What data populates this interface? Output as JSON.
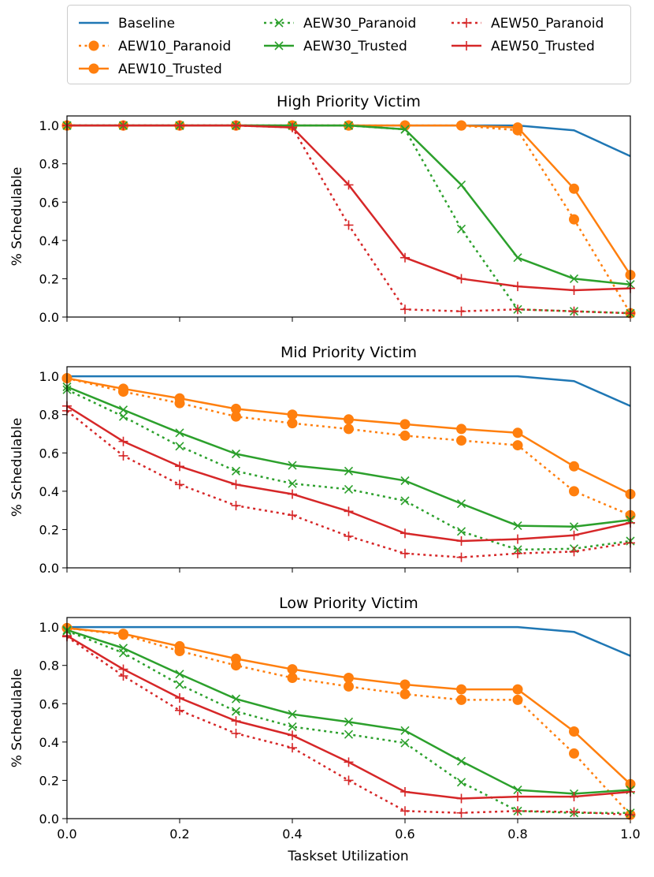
{
  "chart_data": {
    "type": "line",
    "xlabel": "Taskset Utilization",
    "x": [
      0.0,
      0.1,
      0.2,
      0.3,
      0.4,
      0.5,
      0.6,
      0.7,
      0.8,
      0.9,
      1.0
    ],
    "xlim": [
      0.0,
      1.0
    ],
    "xticks": [
      "0.0",
      "0.2",
      "0.4",
      "0.6",
      "0.8",
      "1.0"
    ],
    "legend": {
      "placement": "top",
      "entries": [
        "Baseline",
        "AEW10_Paranoid",
        "AEW10_Trusted",
        "AEW30_Paranoid",
        "AEW30_Trusted",
        "AEW50_Paranoid",
        "AEW50_Trusted"
      ]
    },
    "series_styles": [
      {
        "name": "Baseline",
        "color": "#1f77b4",
        "dash": "solid",
        "marker": "none"
      },
      {
        "name": "AEW10_Paranoid",
        "color": "#ff7f0e",
        "dash": "dotted",
        "marker": "circle"
      },
      {
        "name": "AEW10_Trusted",
        "color": "#ff7f0e",
        "dash": "solid",
        "marker": "circle"
      },
      {
        "name": "AEW30_Paranoid",
        "color": "#2ca02c",
        "dash": "dotted",
        "marker": "x"
      },
      {
        "name": "AEW30_Trusted",
        "color": "#2ca02c",
        "dash": "solid",
        "marker": "x"
      },
      {
        "name": "AEW50_Paranoid",
        "color": "#d62728",
        "dash": "dotted",
        "marker": "plus"
      },
      {
        "name": "AEW50_Trusted",
        "color": "#d62728",
        "dash": "solid",
        "marker": "plus"
      }
    ],
    "panels": [
      {
        "title": "High Priority Victim",
        "ylabel": "% Schedulable",
        "ylim": [
          0.0,
          1.05
        ],
        "yticks": [
          "0.0",
          "0.2",
          "0.4",
          "0.6",
          "0.8",
          "1.0"
        ],
        "series": [
          {
            "name": "Baseline",
            "values": [
              1.0,
              1.0,
              1.0,
              1.0,
              1.0,
              1.0,
              1.0,
              1.0,
              1.0,
              0.975,
              0.84
            ]
          },
          {
            "name": "AEW10_Paranoid",
            "values": [
              1.0,
              1.0,
              1.0,
              1.0,
              1.0,
              1.0,
              1.0,
              1.0,
              0.975,
              0.51,
              0.02
            ]
          },
          {
            "name": "AEW10_Trusted",
            "values": [
              1.0,
              1.0,
              1.0,
              1.0,
              1.0,
              1.0,
              1.0,
              1.0,
              0.99,
              0.67,
              0.22
            ]
          },
          {
            "name": "AEW30_Paranoid",
            "values": [
              1.0,
              1.0,
              1.0,
              1.0,
              1.0,
              1.0,
              0.98,
              0.46,
              0.04,
              0.03,
              0.02
            ]
          },
          {
            "name": "AEW30_Trusted",
            "values": [
              1.0,
              1.0,
              1.0,
              1.0,
              1.0,
              1.0,
              0.98,
              0.69,
              0.31,
              0.2,
              0.17
            ]
          },
          {
            "name": "AEW50_Paranoid",
            "values": [
              1.0,
              1.0,
              1.0,
              1.0,
              0.99,
              0.48,
              0.04,
              0.03,
              0.04,
              0.03,
              0.02
            ]
          },
          {
            "name": "AEW50_Trusted",
            "values": [
              1.0,
              1.0,
              1.0,
              1.0,
              0.99,
              0.69,
              0.31,
              0.2,
              0.16,
              0.14,
              0.15
            ]
          }
        ]
      },
      {
        "title": "Mid Priority Victim",
        "ylabel": "% Schedulable",
        "ylim": [
          0.0,
          1.05
        ],
        "yticks": [
          "0.0",
          "0.2",
          "0.4",
          "0.6",
          "0.8",
          "1.0"
        ],
        "series": [
          {
            "name": "Baseline",
            "values": [
              1.0,
              1.0,
              1.0,
              1.0,
              1.0,
              1.0,
              1.0,
              1.0,
              1.0,
              0.975,
              0.845
            ]
          },
          {
            "name": "AEW10_Paranoid",
            "values": [
              0.99,
              0.92,
              0.86,
              0.79,
              0.755,
              0.725,
              0.69,
              0.665,
              0.64,
              0.4,
              0.275
            ]
          },
          {
            "name": "AEW10_Trusted",
            "values": [
              0.99,
              0.935,
              0.885,
              0.83,
              0.8,
              0.775,
              0.75,
              0.725,
              0.705,
              0.53,
              0.385
            ]
          },
          {
            "name": "AEW30_Paranoid",
            "values": [
              0.93,
              0.79,
              0.635,
              0.505,
              0.44,
              0.41,
              0.35,
              0.19,
              0.095,
              0.1,
              0.14
            ]
          },
          {
            "name": "AEW30_Trusted",
            "values": [
              0.945,
              0.825,
              0.705,
              0.595,
              0.535,
              0.505,
              0.455,
              0.335,
              0.22,
              0.215,
              0.25
            ]
          },
          {
            "name": "AEW50_Paranoid",
            "values": [
              0.82,
              0.585,
              0.435,
              0.325,
              0.275,
              0.165,
              0.075,
              0.055,
              0.075,
              0.085,
              0.13
            ]
          },
          {
            "name": "AEW50_Trusted",
            "values": [
              0.845,
              0.66,
              0.53,
              0.435,
              0.385,
              0.295,
              0.18,
              0.14,
              0.15,
              0.17,
              0.235
            ]
          }
        ]
      },
      {
        "title": "Low Priority Victim",
        "ylabel": "% Schedulable",
        "ylim": [
          0.0,
          1.05
        ],
        "yticks": [
          "0.0",
          "0.2",
          "0.4",
          "0.6",
          "0.8",
          "1.0"
        ],
        "series": [
          {
            "name": "Baseline",
            "values": [
              1.0,
              1.0,
              1.0,
              1.0,
              1.0,
              1.0,
              1.0,
              1.0,
              1.0,
              0.975,
              0.85
            ]
          },
          {
            "name": "AEW10_Paranoid",
            "values": [
              0.995,
              0.96,
              0.875,
              0.8,
              0.735,
              0.69,
              0.65,
              0.62,
              0.62,
              0.34,
              0.02
            ]
          },
          {
            "name": "AEW10_Trusted",
            "values": [
              0.995,
              0.965,
              0.9,
              0.835,
              0.78,
              0.735,
              0.7,
              0.675,
              0.675,
              0.455,
              0.18
            ]
          },
          {
            "name": "AEW30_Paranoid",
            "values": [
              0.98,
              0.865,
              0.7,
              0.56,
              0.48,
              0.44,
              0.395,
              0.19,
              0.04,
              0.03,
              0.03
            ]
          },
          {
            "name": "AEW30_Trusted",
            "values": [
              0.985,
              0.89,
              0.755,
              0.625,
              0.545,
              0.505,
              0.46,
              0.3,
              0.15,
              0.13,
              0.15
            ]
          },
          {
            "name": "AEW50_Paranoid",
            "values": [
              0.95,
              0.745,
              0.565,
              0.445,
              0.37,
              0.2,
              0.04,
              0.03,
              0.04,
              0.035,
              0.02
            ]
          },
          {
            "name": "AEW50_Trusted",
            "values": [
              0.955,
              0.78,
              0.63,
              0.51,
              0.435,
              0.295,
              0.14,
              0.105,
              0.115,
              0.115,
              0.14
            ]
          }
        ]
      }
    ]
  }
}
